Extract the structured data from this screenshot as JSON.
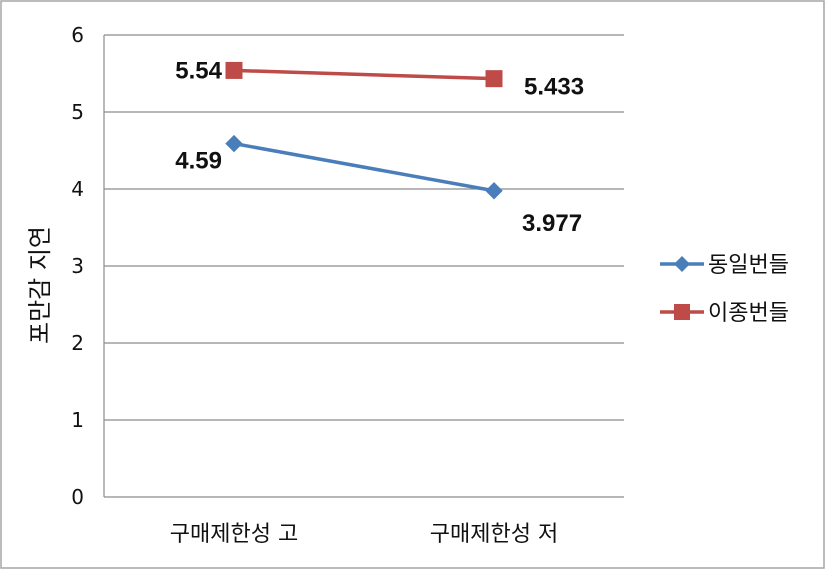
{
  "chart_data": {
    "type": "line",
    "title": "",
    "xlabel": "",
    "ylabel": "포만감 지연",
    "categories": [
      "구매제한성 고",
      "구매제한성 저"
    ],
    "ylim": [
      0,
      6
    ],
    "yticks": [
      "0",
      "1",
      "2",
      "3",
      "4",
      "5",
      "6"
    ],
    "grid": true,
    "legend_position": "right",
    "series": [
      {
        "name": "동일번들",
        "values": [
          4.59,
          3.977
        ],
        "labels": [
          "4.59",
          "3.977"
        ],
        "color": "#4a7ebb",
        "marker": "diamond"
      },
      {
        "name": "이종번들",
        "values": [
          5.54,
          5.433
        ],
        "labels": [
          "5.54",
          "5.433"
        ],
        "color": "#be4b48",
        "marker": "square"
      }
    ]
  }
}
